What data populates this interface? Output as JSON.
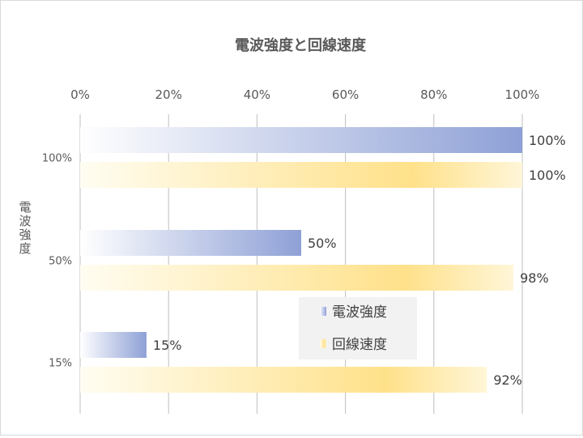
{
  "chart_data": {
    "type": "bar",
    "orientation": "horizontal",
    "title": "電波強度と回線速度",
    "ylabel": "電波強度",
    "xlabel": "",
    "xlim": [
      0,
      100
    ],
    "x_ticks": [
      "0%",
      "20%",
      "40%",
      "60%",
      "80%",
      "100%"
    ],
    "x_tick_values": [
      0,
      20,
      40,
      60,
      80,
      100
    ],
    "x_axis_position": "top",
    "categories": [
      "100%",
      "50%",
      "15%"
    ],
    "series": [
      {
        "name": "電波強度",
        "values": [
          100,
          50,
          15
        ],
        "labels": [
          "100%",
          "50%",
          "15%"
        ],
        "color": "#8ea0d6",
        "color_start": "#ffffff"
      },
      {
        "name": "回線速度",
        "values": [
          100,
          98,
          92
        ],
        "labels": [
          "100%",
          "98%",
          "92%"
        ],
        "color": "#ffe18a",
        "color_start": "#fffdf2"
      }
    ],
    "grid": true,
    "legend_position": "center-right"
  }
}
